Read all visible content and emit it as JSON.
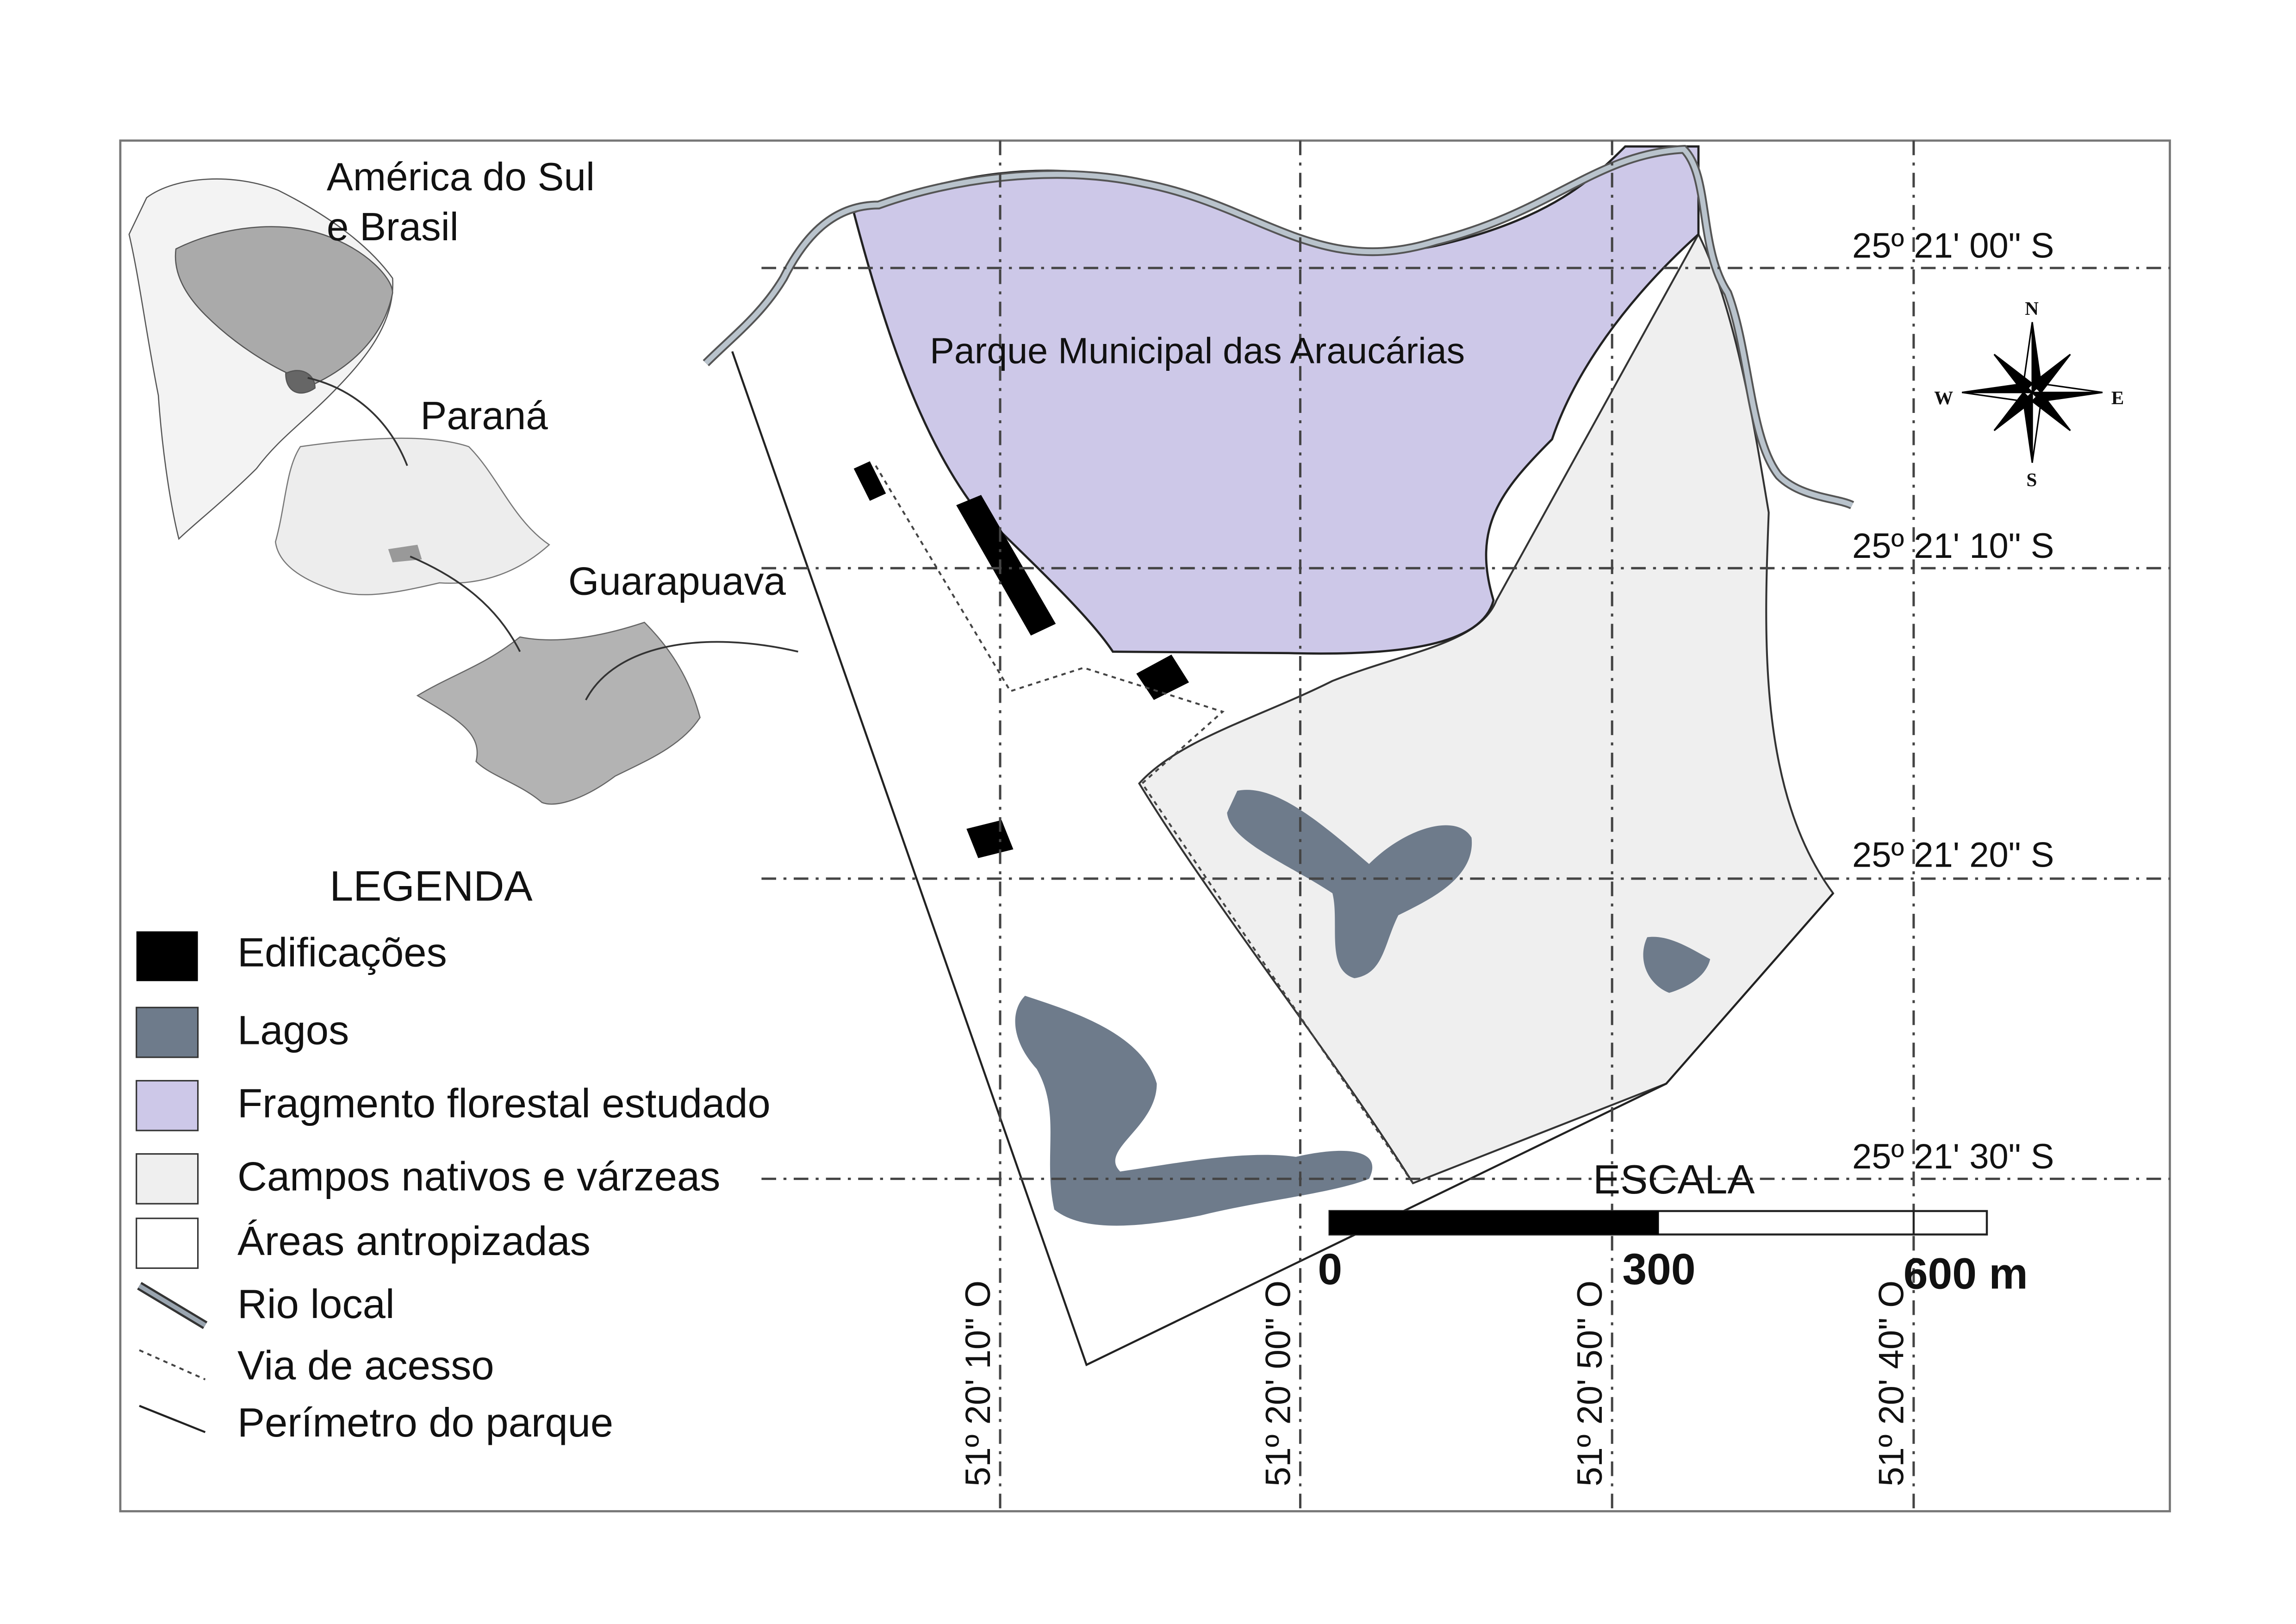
{
  "map": {
    "park_name": "Parque Municipal das Araucárias",
    "inset_labels": {
      "south_america": [
        "América do Sul",
        "e Brasil"
      ],
      "state": "Paraná",
      "city": "Guarapuava"
    },
    "latitude_labels": [
      "25º 21' 00\" S",
      "25º 21' 10\" S",
      "25º 21' 20\" S",
      "25º 21' 30\" S"
    ],
    "longitude_labels": [
      "51º 20' 10\" O",
      "51º 20' 00\" O",
      "51º 20' 50\" O",
      "51º 20' 40\" O"
    ],
    "compass": {
      "n": "N",
      "s": "S",
      "e": "E",
      "w": "W"
    },
    "scale": {
      "title": "ESCALA",
      "labels": [
        "0",
        "300",
        "600 m"
      ]
    },
    "legend": {
      "title": "LEGENDA",
      "items": [
        {
          "label": "Edificações",
          "color": "#000000"
        },
        {
          "label": "Lagos",
          "color": "#6e7b8b"
        },
        {
          "label": "Fragmento florestal estudado",
          "color": "#cdc8e8"
        },
        {
          "label": "Campos nativos e várzeas",
          "color": "#efefef"
        },
        {
          "label": "Áreas antropizadas",
          "color": "#ffffff"
        },
        {
          "label": "Rio local",
          "color": "#9aa5b0"
        },
        {
          "label": "Via de acesso",
          "color": "#444444"
        },
        {
          "label": "Perímetro do parque",
          "color": "#222222"
        }
      ]
    }
  }
}
